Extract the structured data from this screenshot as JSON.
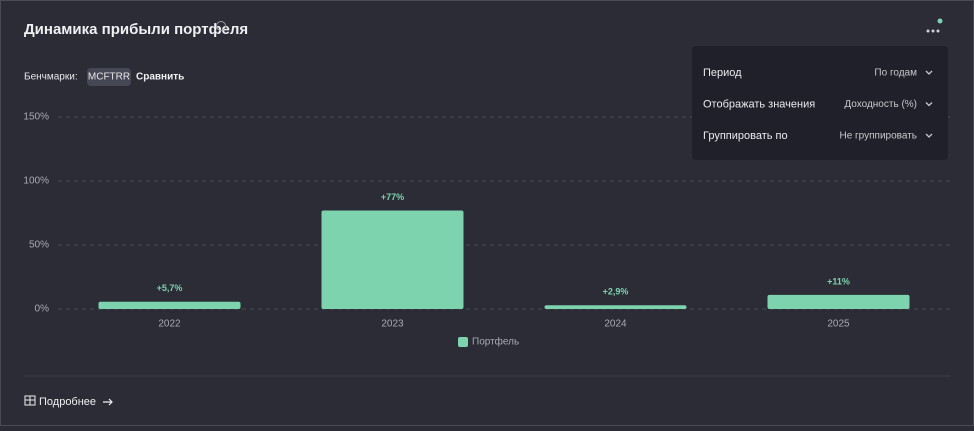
{
  "header": {
    "title": "Динамика прибыли портфеля"
  },
  "benchmarks": {
    "label": "Бенчмарки:",
    "chip": "MCFTRR",
    "action": "Сравнить"
  },
  "menu": {
    "items": [
      {
        "label": "Период",
        "value": "По годам"
      },
      {
        "label": "Отображать значения",
        "value": "Доходность (%)"
      },
      {
        "label": "Группировать по",
        "value": "Не группировать"
      }
    ]
  },
  "footer": {
    "link": "Подробнее"
  },
  "chart_data": {
    "type": "bar",
    "categories": [
      "2022",
      "2023",
      "2024",
      "2025"
    ],
    "series": [
      {
        "name": "Портфель",
        "color": "#7dd3ae",
        "values": [
          5.7,
          77,
          2.9,
          11
        ],
        "value_labels": [
          "+5,7%",
          "+77%",
          "+2,9%",
          "+11%"
        ]
      }
    ],
    "ylim": [
      0,
      150
    ],
    "yticks": [
      {
        "value": 0,
        "label": "0%"
      },
      {
        "value": 50,
        "label": "50%"
      },
      {
        "value": 100,
        "label": "100%"
      },
      {
        "value": 150,
        "label": "150%"
      }
    ],
    "grid": true
  }
}
